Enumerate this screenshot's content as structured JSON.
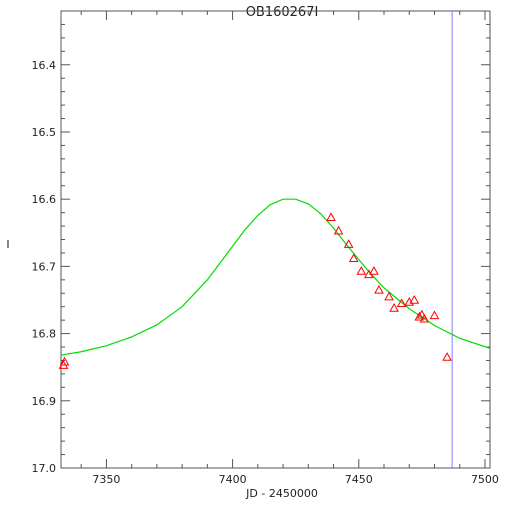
{
  "chart_data": {
    "type": "scatter",
    "title": "OB160267I",
    "xlabel": "JD - 2450000",
    "ylabel": "I",
    "xlim": [
      7332,
      7502
    ],
    "ylim": [
      17.0,
      16.32
    ],
    "y_inverted": true,
    "grid": false,
    "x_ticks": [
      7350,
      7400,
      7450,
      7500
    ],
    "y_ticks": [
      16.4,
      16.5,
      16.6,
      16.7,
      16.8,
      16.9,
      17.0
    ],
    "x_tick_labels": [
      "7350",
      "7400",
      "7450",
      "7500"
    ],
    "y_tick_labels": [
      "16.4",
      "16.5",
      "16.6",
      "16.7",
      "16.8",
      "16.9",
      "17.0"
    ],
    "series": [
      {
        "kind": "model_curve",
        "color": "#00dd00",
        "x": [
          7332,
          7340,
          7350,
          7360,
          7370,
          7380,
          7390,
          7400,
          7405,
          7410,
          7415,
          7420,
          7425,
          7430,
          7435,
          7440,
          7445,
          7450,
          7455,
          7460,
          7470,
          7480,
          7490,
          7502
        ],
        "y": [
          16.832,
          16.827,
          16.818,
          16.805,
          16.787,
          16.76,
          16.72,
          16.67,
          16.645,
          16.624,
          16.608,
          16.6,
          16.6,
          16.607,
          16.622,
          16.643,
          16.667,
          16.69,
          16.712,
          16.732,
          16.763,
          16.788,
          16.807,
          16.822
        ]
      },
      {
        "kind": "data_points",
        "marker": "triangle",
        "color": "#ff0000",
        "x": [
          7333,
          7333.4,
          7439,
          7442,
          7446,
          7448,
          7451,
          7454,
          7456,
          7458,
          7462,
          7464,
          7467,
          7470,
          7472,
          7474,
          7475,
          7476,
          7480,
          7485
        ],
        "y": [
          16.847,
          16.842,
          16.627,
          16.647,
          16.667,
          16.688,
          16.707,
          16.712,
          16.707,
          16.735,
          16.745,
          16.762,
          16.755,
          16.753,
          16.75,
          16.775,
          16.772,
          16.778,
          16.773,
          16.835
        ]
      }
    ],
    "vertical_line": {
      "x": 7487,
      "color": "#8080ff"
    }
  },
  "colors": {
    "axis": "#555555",
    "text": "#222222",
    "background": "#ffffff"
  }
}
